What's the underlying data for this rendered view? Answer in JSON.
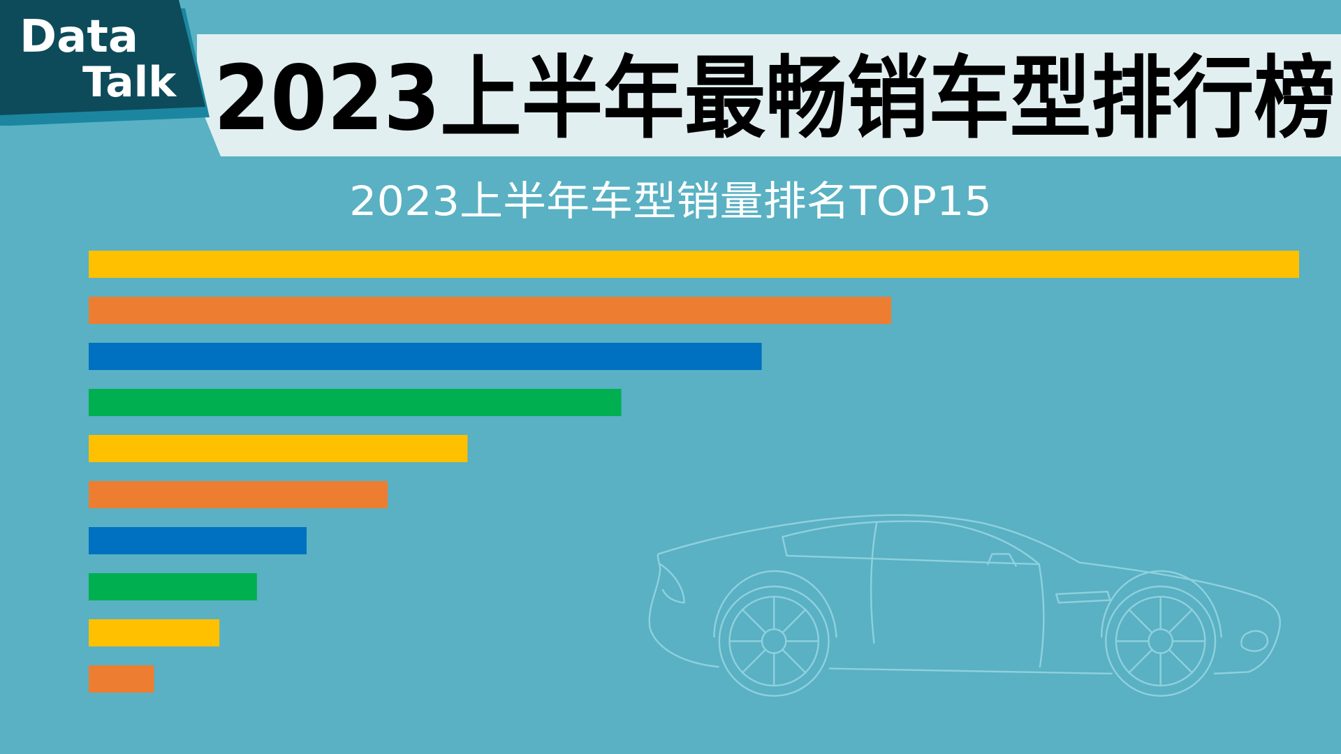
{
  "brand": {
    "line1": "Data",
    "line2": "Talk"
  },
  "chart_data": {
    "type": "bar",
    "orientation": "horizontal",
    "title": "2023上半年最畅销车型排行榜",
    "subtitle": "2023上半年车型销量排名TOP15",
    "categories": [
      null,
      null,
      null,
      null,
      null,
      null,
      null,
      null,
      null,
      null
    ],
    "values": [
      100,
      66.3,
      55.6,
      44.0,
      31.3,
      24.7,
      18.0,
      13.9,
      10.8,
      5.4
    ],
    "colors": [
      "#ffc000",
      "#ed7d31",
      "#0070c0",
      "#00b050",
      "#ffc000",
      "#ed7d31",
      "#0070c0",
      "#00b050",
      "#ffc000",
      "#ed7d31"
    ]
  }
}
